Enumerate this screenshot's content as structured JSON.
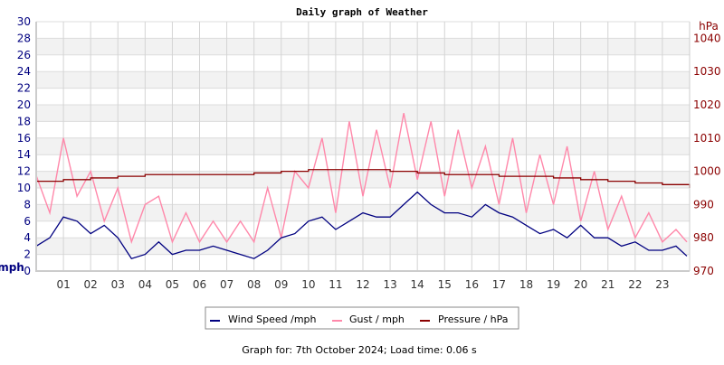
{
  "chart_data": {
    "type": "line",
    "title": "Daily graph of Weather",
    "ylabel_left": "mph",
    "ylabel_right": "hPa",
    "ylim_left": [
      0,
      30
    ],
    "ylim_right": [
      970,
      1045
    ],
    "yticks_left": [
      "0",
      "2",
      "4",
      "6",
      "8",
      "10",
      "12",
      "14",
      "16",
      "18",
      "20",
      "22",
      "24",
      "26",
      "28",
      "30"
    ],
    "yticks_right": [
      "970",
      "980",
      "990",
      "1000",
      "1010",
      "1020",
      "1030",
      "1040"
    ],
    "xticks": [
      "01",
      "02",
      "03",
      "04",
      "05",
      "06",
      "07",
      "08",
      "09",
      "10",
      "11",
      "12",
      "13",
      "14",
      "15",
      "16",
      "17",
      "18",
      "19",
      "20",
      "21",
      "22",
      "23"
    ],
    "xlim": [
      0,
      24
    ],
    "grid": true,
    "legend_position": "bottom",
    "series": [
      {
        "name": "Wind Speed /mph",
        "color": "#000080",
        "axis": "left",
        "x": [
          0,
          0.5,
          1,
          1.5,
          2,
          2.5,
          3,
          3.5,
          4,
          4.5,
          5,
          5.5,
          6,
          6.5,
          7,
          7.5,
          8,
          8.5,
          9,
          9.5,
          10,
          10.5,
          11,
          11.5,
          12,
          12.5,
          13,
          13.5,
          14,
          14.5,
          15,
          15.5,
          16,
          16.5,
          17,
          17.5,
          18,
          18.5,
          19,
          19.5,
          20,
          20.5,
          21,
          21.5,
          22,
          22.5,
          23,
          23.5,
          23.9
        ],
        "values": [
          3,
          4,
          6.5,
          6,
          4.5,
          5.5,
          4,
          1.5,
          2,
          3.5,
          2,
          2.5,
          2.5,
          3,
          2.5,
          2,
          1.5,
          2.5,
          4,
          4.5,
          6,
          6.5,
          5,
          6,
          7,
          6.5,
          6.5,
          8,
          9.5,
          8,
          7,
          7,
          6.5,
          8,
          7,
          6.5,
          5.5,
          4.5,
          5,
          4,
          5.5,
          4,
          4,
          3,
          3.5,
          2.5,
          2.5,
          3,
          1.8
        ]
      },
      {
        "name": "Gust / mph",
        "color": "#ff88aa",
        "axis": "left",
        "x": [
          0,
          0.5,
          1,
          1.5,
          2,
          2.5,
          3,
          3.5,
          4,
          4.5,
          5,
          5.5,
          6,
          6.5,
          7,
          7.5,
          8,
          8.5,
          9,
          9.5,
          10,
          10.5,
          11,
          11.5,
          12,
          12.5,
          13,
          13.5,
          14,
          14.5,
          15,
          15.5,
          16,
          16.5,
          17,
          17.5,
          18,
          18.5,
          19,
          19.5,
          20,
          20.5,
          21,
          21.5,
          22,
          22.5,
          23,
          23.5,
          23.9
        ],
        "values": [
          11.5,
          7,
          16,
          9,
          12,
          6,
          10,
          3.5,
          8,
          9,
          3.5,
          7,
          3.5,
          6,
          3.5,
          6,
          3.5,
          10,
          4,
          12,
          10,
          16,
          7,
          18,
          9,
          17,
          10,
          19,
          11,
          18,
          9,
          17,
          10,
          15,
          8,
          16,
          7,
          14,
          8,
          15,
          6,
          12,
          5,
          9,
          4,
          7,
          3.5,
          5,
          3.5
        ]
      },
      {
        "name": "Pressure / hPa",
        "color": "#8b0000",
        "axis": "right",
        "x": [
          0,
          1,
          2,
          3,
          4,
          5,
          6,
          7,
          8,
          9,
          10,
          11,
          12,
          13,
          14,
          15,
          16,
          17,
          18,
          19,
          20,
          21,
          22,
          23,
          24
        ],
        "values": [
          997,
          997.5,
          998,
          998.5,
          999,
          999,
          999,
          999,
          999.5,
          1000,
          1000.5,
          1000.5,
          1000.5,
          1000,
          999.5,
          999,
          999,
          998.5,
          998.5,
          998,
          997.5,
          997,
          996.5,
          996,
          995
        ]
      }
    ]
  },
  "footer": "Graph for: 7th October 2024; Load time: 0.06 s"
}
